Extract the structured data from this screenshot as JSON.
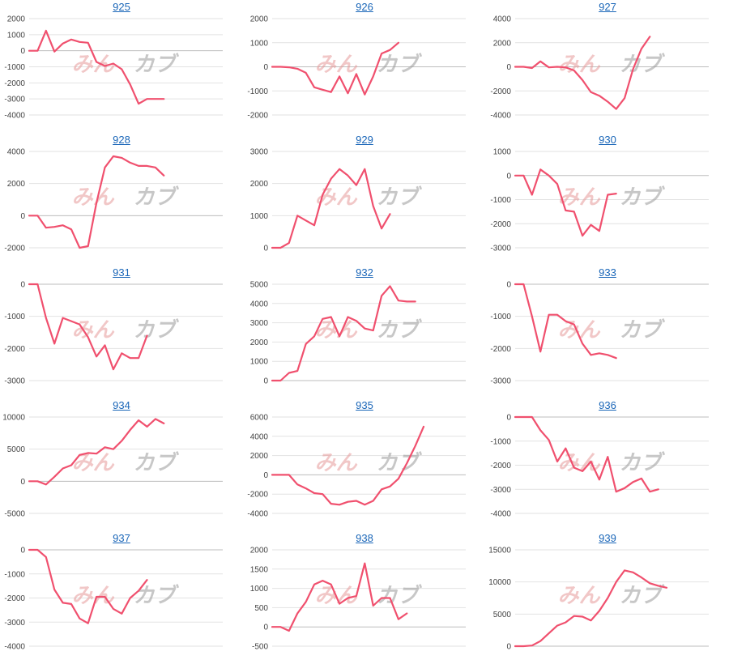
{
  "colors": {
    "line": "#f0506e",
    "grid": "#e2e2e2",
    "zero": "#bdbdbd",
    "title": "#1a66b8"
  },
  "watermark": "みんカブ",
  "chart_data": [
    {
      "type": "line",
      "title": "925",
      "yticks": [
        2000,
        1000,
        0,
        -1000,
        -2000,
        -3000,
        -4000
      ],
      "ylim": [
        -4000,
        2000
      ],
      "xmax": 23,
      "values": [
        0,
        0,
        1250,
        -50,
        450,
        700,
        550,
        500,
        -700,
        -950,
        -800,
        -1150,
        -2100,
        -3300,
        -3000,
        -3000,
        -3000
      ]
    },
    {
      "type": "line",
      "title": "926",
      "yticks": [
        2000,
        1000,
        0,
        -1000,
        -2000
      ],
      "ylim": [
        -2000,
        2000
      ],
      "xmax": 23,
      "values": [
        0,
        0,
        -20,
        -80,
        -250,
        -850,
        -950,
        -1050,
        -400,
        -1100,
        -300,
        -1150,
        -400,
        550,
        700,
        1000
      ]
    },
    {
      "type": "line",
      "title": "927",
      "yticks": [
        4000,
        2000,
        0,
        -2000,
        -4000
      ],
      "ylim": [
        -4000,
        4000
      ],
      "xmax": 23,
      "values": [
        0,
        0,
        -100,
        450,
        -50,
        0,
        -50,
        -300,
        -1100,
        -2100,
        -2400,
        -2900,
        -3500,
        -2600,
        -200,
        1500,
        2500
      ]
    },
    {
      "type": "line",
      "title": "928",
      "yticks": [
        4000,
        2000,
        0,
        -2000
      ],
      "ylim": [
        -2000,
        4000
      ],
      "xmax": 23,
      "values": [
        0,
        0,
        -750,
        -700,
        -600,
        -850,
        -2000,
        -1900,
        800,
        3000,
        3700,
        3600,
        3300,
        3100,
        3100,
        3000,
        2500
      ]
    },
    {
      "type": "line",
      "title": "929",
      "yticks": [
        3000,
        2000,
        1000,
        0
      ],
      "ylim": [
        0,
        3000
      ],
      "xmax": 23,
      "values": [
        0,
        0,
        150,
        1000,
        850,
        700,
        1650,
        2150,
        2450,
        2250,
        1950,
        2450,
        1300,
        600,
        1050
      ]
    },
    {
      "type": "line",
      "title": "930",
      "yticks": [
        1000,
        0,
        -1000,
        -2000,
        -3000
      ],
      "ylim": [
        -3000,
        1000
      ],
      "xmax": 23,
      "values": [
        0,
        0,
        -800,
        250,
        0,
        -350,
        -1450,
        -1500,
        -2500,
        -2050,
        -2300,
        -800,
        -750
      ]
    },
    {
      "type": "line",
      "title": "931",
      "yticks": [
        0,
        -1000,
        -2000,
        -3000
      ],
      "ylim": [
        -3000,
        0
      ],
      "xmax": 23,
      "values": [
        0,
        0,
        -1050,
        -1850,
        -1050,
        -1150,
        -1250,
        -1650,
        -2250,
        -1900,
        -2650,
        -2150,
        -2300,
        -2300,
        -1600
      ]
    },
    {
      "type": "line",
      "title": "932",
      "yticks": [
        5000,
        4000,
        3000,
        2000,
        1000,
        0
      ],
      "ylim": [
        0,
        5000
      ],
      "xmax": 23,
      "values": [
        0,
        0,
        400,
        500,
        1900,
        2300,
        3200,
        3300,
        2300,
        3300,
        3100,
        2700,
        2600,
        4400,
        4900,
        4150,
        4100,
        4100
      ]
    },
    {
      "type": "line",
      "title": "933",
      "yticks": [
        0,
        -1000,
        -2000,
        -3000
      ],
      "ylim": [
        -3000,
        0
      ],
      "xmax": 23,
      "values": [
        0,
        0,
        -1000,
        -2100,
        -950,
        -950,
        -1150,
        -1250,
        -1850,
        -2200,
        -2150,
        -2200,
        -2300
      ]
    },
    {
      "type": "line",
      "title": "934",
      "yticks": [
        10000,
        5000,
        0,
        -5000
      ],
      "ylim": [
        -5000,
        10000
      ],
      "xmax": 23,
      "values": [
        0,
        0,
        -500,
        700,
        2000,
        2500,
        4100,
        4400,
        4300,
        5300,
        5000,
        6300,
        8000,
        9500,
        8500,
        9700,
        9000
      ]
    },
    {
      "type": "line",
      "title": "935",
      "yticks": [
        6000,
        4000,
        2000,
        0,
        -2000,
        -4000
      ],
      "ylim": [
        -4000,
        6000
      ],
      "xmax": 23,
      "values": [
        0,
        0,
        0,
        -1000,
        -1400,
        -1900,
        -2000,
        -3000,
        -3100,
        -2800,
        -2700,
        -3100,
        -2700,
        -1500,
        -1200,
        -400,
        1200,
        3000,
        5000
      ]
    },
    {
      "type": "line",
      "title": "936",
      "yticks": [
        0,
        -1000,
        -2000,
        -3000,
        -4000
      ],
      "ylim": [
        -4000,
        0
      ],
      "xmax": 23,
      "values": [
        0,
        0,
        0,
        -550,
        -950,
        -1850,
        -1300,
        -2100,
        -2250,
        -1850,
        -2600,
        -1650,
        -3100,
        -2950,
        -2700,
        -2550,
        -3100,
        -3000
      ]
    },
    {
      "type": "line",
      "title": "937",
      "yticks": [
        0,
        -1000,
        -2000,
        -3000,
        -4000
      ],
      "ylim": [
        -4000,
        0
      ],
      "xmax": 23,
      "values": [
        0,
        0,
        -300,
        -1650,
        -2200,
        -2250,
        -2850,
        -3050,
        -1950,
        -1950,
        -2450,
        -2650,
        -2000,
        -1700,
        -1250
      ]
    },
    {
      "type": "line",
      "title": "938",
      "yticks": [
        2000,
        1500,
        1000,
        500,
        0,
        -500
      ],
      "ylim": [
        -500,
        2000
      ],
      "xmax": 23,
      "values": [
        0,
        0,
        -100,
        350,
        650,
        1100,
        1200,
        1100,
        600,
        750,
        800,
        1650,
        550,
        750,
        750,
        200,
        350
      ]
    },
    {
      "type": "line",
      "title": "939",
      "yticks": [
        15000,
        10000,
        5000,
        0
      ],
      "ylim": [
        0,
        15000
      ],
      "xmax": 23,
      "values": [
        0,
        0,
        100,
        800,
        2000,
        3200,
        3700,
        4700,
        4600,
        4000,
        5500,
        7500,
        10000,
        11800,
        11500,
        10700,
        9800,
        9400,
        9100
      ]
    }
  ]
}
